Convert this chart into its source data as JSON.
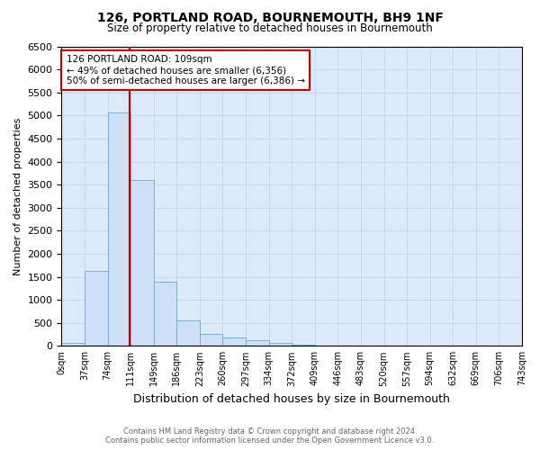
{
  "title": "126, PORTLAND ROAD, BOURNEMOUTH, BH9 1NF",
  "subtitle": "Size of property relative to detached houses in Bournemouth",
  "xlabel": "Distribution of detached houses by size in Bournemouth",
  "ylabel": "Number of detached properties",
  "footer1": "Contains HM Land Registry data © Crown copyright and database right 2024.",
  "footer2": "Contains public sector information licensed under the Open Government Licence v3.0.",
  "bin_labels": [
    "0sqm",
    "37sqm",
    "74sqm",
    "111sqm",
    "149sqm",
    "186sqm",
    "223sqm",
    "260sqm",
    "297sqm",
    "334sqm",
    "372sqm",
    "409sqm",
    "446sqm",
    "483sqm",
    "520sqm",
    "557sqm",
    "594sqm",
    "632sqm",
    "669sqm",
    "706sqm",
    "743sqm"
  ],
  "bar_values": [
    60,
    1620,
    5060,
    3590,
    1390,
    560,
    255,
    175,
    120,
    55,
    20,
    5,
    0,
    0,
    0,
    0,
    0,
    0,
    0,
    0
  ],
  "bar_color": "#cde0f5",
  "bar_edge_color": "#6aaad4",
  "vline_color": "#c00000",
  "annotation_text": "126 PORTLAND ROAD: 109sqm\n← 49% of detached houses are smaller (6,356)\n50% of semi-detached houses are larger (6,386) →",
  "annotation_box_color": "#ffffff",
  "annotation_box_edge": "#c00000",
  "ylim": [
    0,
    6500
  ],
  "yticks": [
    0,
    500,
    1000,
    1500,
    2000,
    2500,
    3000,
    3500,
    4000,
    4500,
    5000,
    5500,
    6000,
    6500
  ],
  "property_sqm": 109,
  "grid_color": "#c8d8ec",
  "background_color": "#dce9f8"
}
